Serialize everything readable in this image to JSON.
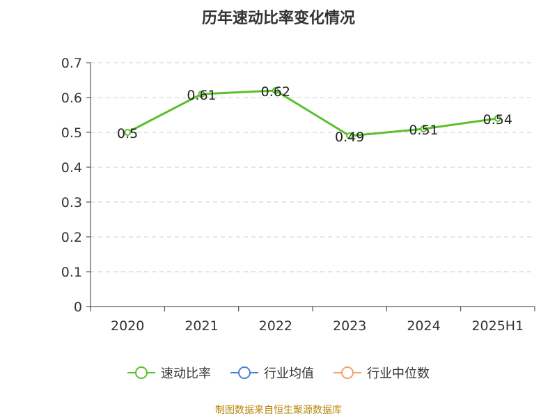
{
  "title": "历年速动比率变化情况",
  "source": "制图数据来自恒生聚源数据库",
  "colors": {
    "series": "#5ac02a",
    "industry_avg": "#4d7fd6",
    "industry_median": "#f4a06a",
    "axis": "#333333",
    "grid": "#cccccc"
  },
  "legend": [
    {
      "label": "速动比率",
      "color": "#5ac02a"
    },
    {
      "label": "行业均值",
      "color": "#4d7fd6"
    },
    {
      "label": "行业中位数",
      "color": "#f4a06a"
    }
  ],
  "chart_data": {
    "type": "line",
    "title": "历年速动比率变化情况",
    "categories": [
      "2020",
      "2021",
      "2022",
      "2023",
      "2024",
      "2025H1"
    ],
    "series": [
      {
        "name": "速动比率",
        "values": [
          0.5,
          0.61,
          0.62,
          0.49,
          0.51,
          0.54
        ],
        "labels": [
          "0.5",
          "0.61",
          "0.62",
          "0.49",
          "0.51",
          "0.54"
        ]
      }
    ],
    "ylim": [
      0,
      0.7
    ],
    "yticks": [
      "0",
      "0.1",
      "0.2",
      "0.3",
      "0.4",
      "0.5",
      "0.6",
      "0.7"
    ],
    "xlabel": "",
    "ylabel": "",
    "grid": true,
    "legend_position": "bottom"
  }
}
